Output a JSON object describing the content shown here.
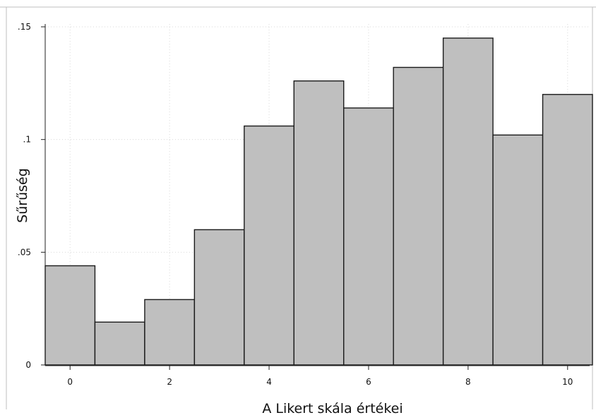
{
  "chart_data": {
    "type": "bar",
    "title": "",
    "xlabel": "A Likert skála értékei",
    "ylabel": "Sűrűség",
    "categories": [
      0,
      1,
      2,
      3,
      4,
      5,
      6,
      7,
      8,
      9,
      10
    ],
    "values": [
      0.044,
      0.019,
      0.029,
      0.06,
      0.106,
      0.126,
      0.114,
      0.132,
      0.145,
      0.102,
      0.12
    ],
    "xlim": [
      -0.5,
      10.5
    ],
    "ylim": [
      0,
      0.15
    ],
    "x_ticks": [
      0,
      2,
      4,
      6,
      8,
      10
    ],
    "x_tick_labels": [
      "0",
      "2",
      "4",
      "6",
      "8",
      "10"
    ],
    "y_ticks": [
      0,
      0.05,
      0.1,
      0.15
    ],
    "y_tick_labels": [
      "0",
      ".05",
      ".1",
      ".15"
    ],
    "grid": true,
    "legend": "none",
    "colors": {
      "bar_fill": "#bfbfbf",
      "bar_edge": "#1a1a1a"
    }
  }
}
